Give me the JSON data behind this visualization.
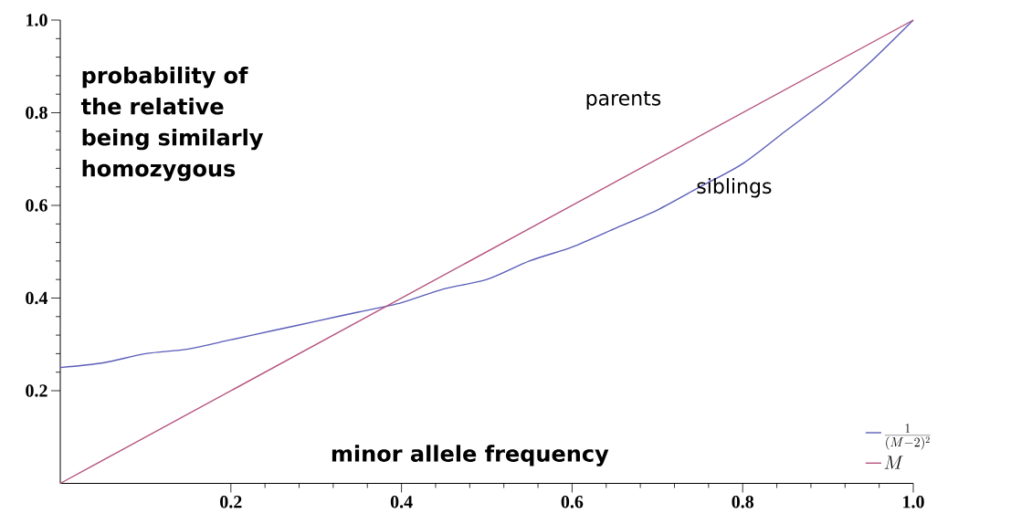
{
  "chart_data": {
    "type": "line",
    "xlabel": "minor allele frequency",
    "ylabel": "probability of the relative being similarly homozygous",
    "series": [
      {
        "name": "\\frac{1}{(M-2)^{2}}",
        "color": "#5b5db8",
        "x": [
          0,
          0.05,
          0.1,
          0.15,
          0.2,
          0.25,
          0.3,
          0.35,
          0.4,
          0.45,
          0.5,
          0.55,
          0.6,
          0.65,
          0.7,
          0.75,
          0.8,
          0.85,
          0.9,
          0.95,
          1.0
        ],
        "values": [
          0.25,
          0.26,
          0.28,
          0.29,
          0.31,
          0.33,
          0.35,
          0.37,
          0.39,
          0.42,
          0.44,
          0.48,
          0.51,
          0.55,
          0.59,
          0.64,
          0.69,
          0.76,
          0.83,
          0.91,
          1.0
        ]
      },
      {
        "name": "M",
        "color": "#b5517e",
        "x": [
          0,
          1.0
        ],
        "values": [
          0,
          1.0
        ]
      }
    ],
    "xlim": [
      0,
      1
    ],
    "ylim": [
      0,
      1
    ],
    "xticks": [
      0.2,
      0.4,
      0.6,
      0.8,
      {
        "value": 1.0,
        "label": "1.0"
      }
    ],
    "yticks": [
      0.2,
      0.4,
      0.6,
      0.8,
      {
        "value": 1.0,
        "label": "1.0"
      }
    ],
    "annotations": [
      "parents",
      "siblings"
    ],
    "legend": "bottom right",
    "marker": "none",
    "line_style": "solid"
  }
}
